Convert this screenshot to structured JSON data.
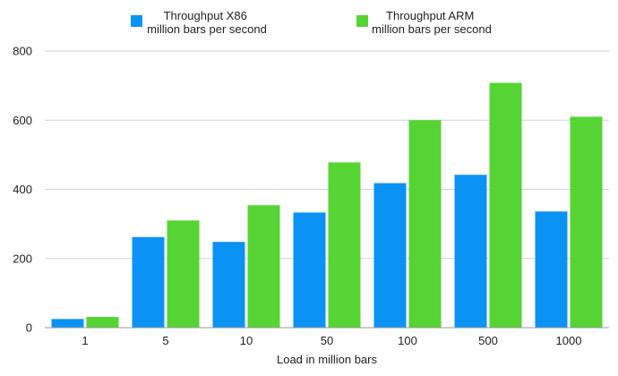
{
  "chart_data": {
    "type": "bar",
    "title": "",
    "xlabel": "Load in million bars",
    "ylabel": "",
    "categories": [
      "1",
      "5",
      "10",
      "50",
      "100",
      "500",
      "1000"
    ],
    "series": [
      {
        "name": "Throughput X86",
        "name_line2": "million bars per second",
        "color": "#0a93f5",
        "values": [
          25,
          262,
          248,
          333,
          418,
          442,
          336
        ]
      },
      {
        "name": "Throughput ARM",
        "name_line2": "million bars per second",
        "color": "#56d433",
        "values": [
          31,
          310,
          354,
          478,
          600,
          708,
          610
        ]
      }
    ],
    "ylim": [
      0,
      800
    ],
    "yticks": [
      0,
      200,
      400,
      600,
      800
    ],
    "grid": true,
    "legend": "top"
  }
}
